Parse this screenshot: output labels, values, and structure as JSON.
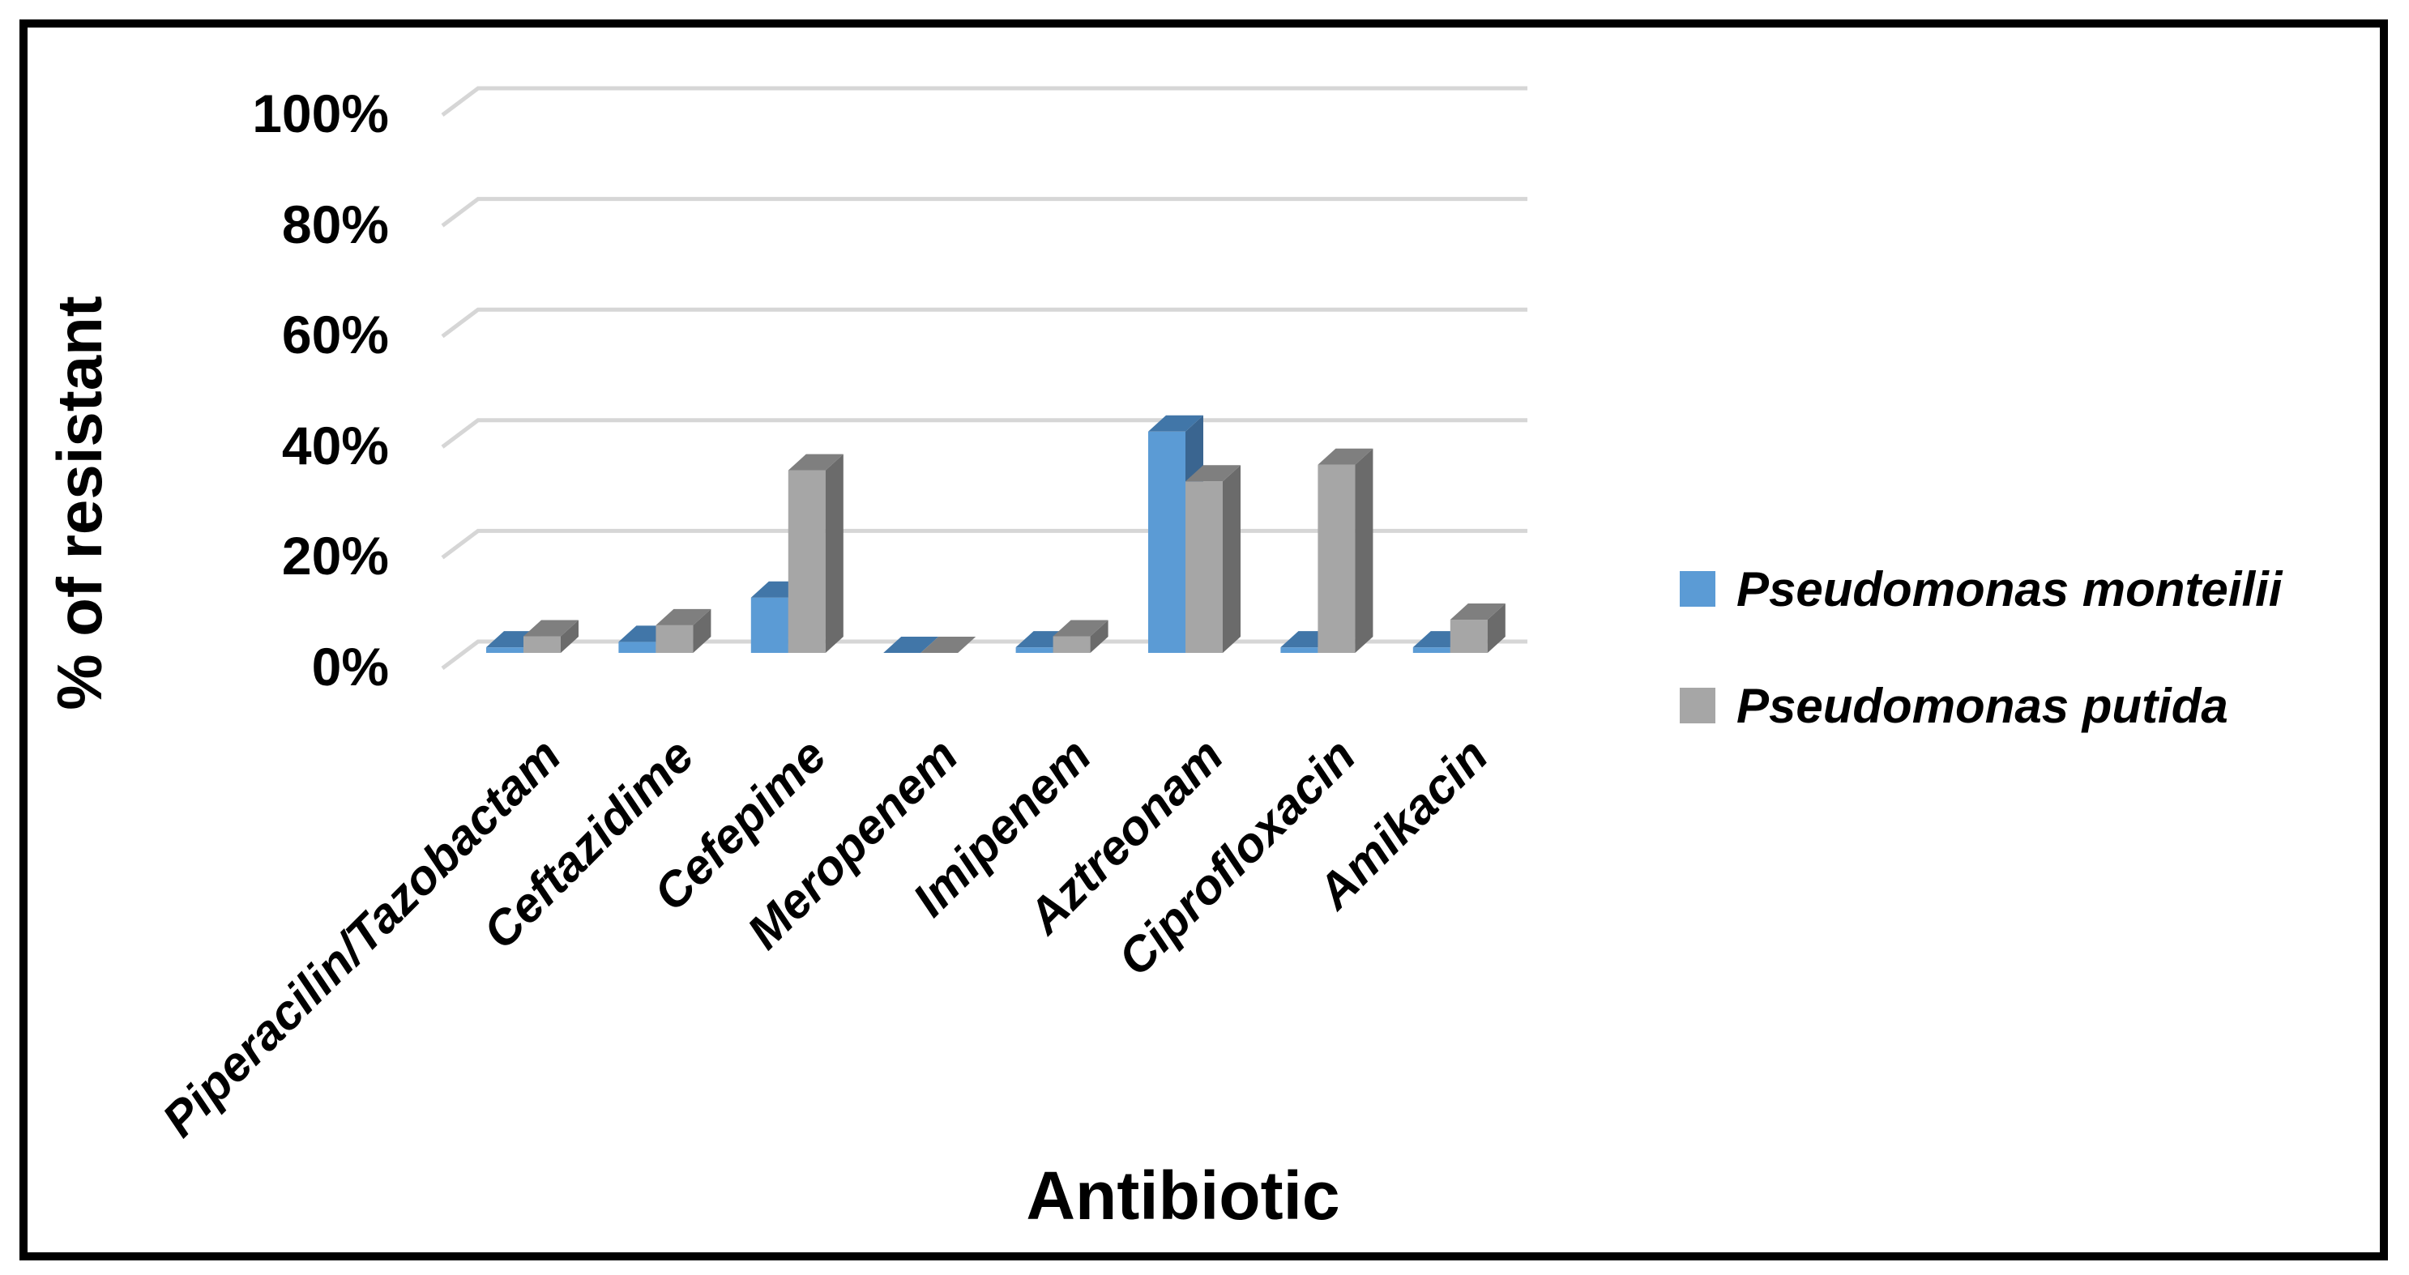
{
  "chart_data": {
    "type": "bar",
    "variant": "3d-clustered-column",
    "title": "",
    "xlabel": "Antibiotic",
    "ylabel": "% of resistant",
    "categories": [
      "Piperacilin/Tazobactam",
      "Ceftazidime",
      "Cefepime",
      "Meropenem",
      "Imipenem",
      "Aztreonam",
      "Ciprofloxacin",
      "Amikacin"
    ],
    "series": [
      {
        "name": "Pseudomonas monteilii",
        "color": "#5B9BD5",
        "values": [
          1,
          2,
          10,
          0,
          1,
          40,
          1,
          1
        ]
      },
      {
        "name": "Pseudomonas putida",
        "color": "#A6A6A6",
        "values": [
          3,
          5,
          33,
          0,
          3,
          31,
          34,
          6
        ]
      }
    ],
    "y_ticks": [
      "100%",
      "80%",
      "60%",
      "40%",
      "20%",
      "0%"
    ],
    "ylim": [
      0,
      100
    ],
    "y_unit": "percent",
    "grid": true,
    "gridline_color": "#D6D6D6",
    "legend_position": "right",
    "background": "#FFFFFF",
    "border_color": "#000000"
  }
}
